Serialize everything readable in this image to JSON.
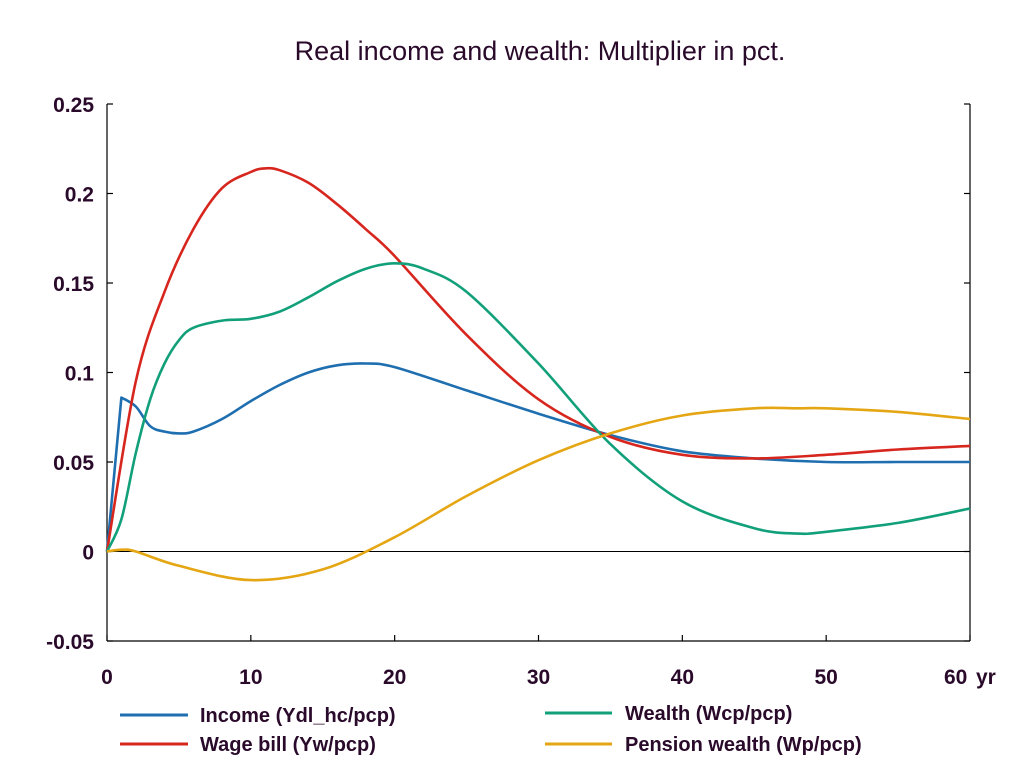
{
  "chart_data": {
    "type": "line",
    "title": "Real income and wealth: Multiplier in pct.",
    "xlabel": "",
    "ylabel": "",
    "x_unit_label": "yr",
    "xlim": [
      0,
      60
    ],
    "ylim": [
      -0.05,
      0.25
    ],
    "x_ticks": [
      {
        "value": 0,
        "label": "0"
      },
      {
        "value": 10,
        "label": "10"
      },
      {
        "value": 20,
        "label": "20"
      },
      {
        "value": 30,
        "label": "30"
      },
      {
        "value": 40,
        "label": "40"
      },
      {
        "value": 50,
        "label": "50"
      },
      {
        "value": 60,
        "label": "60"
      }
    ],
    "y_ticks": [
      {
        "value": 0.25,
        "label": "0.25"
      },
      {
        "value": 0.2,
        "label": "0.2"
      },
      {
        "value": 0.15,
        "label": "0.15"
      },
      {
        "value": 0.1,
        "label": "0.1"
      },
      {
        "value": 0.05,
        "label": "0.05"
      },
      {
        "value": 0,
        "label": "0"
      },
      {
        "value": -0.05,
        "label": "-0.05"
      }
    ],
    "zero_line": true,
    "grid": false,
    "legend_position": "bottom",
    "series": [
      {
        "name": "Income (Ydl_hc/pcp)",
        "color": "#1f6fb0",
        "x": [
          0,
          1,
          2,
          3,
          4,
          5,
          6,
          8,
          10,
          12,
          14,
          16,
          18,
          20,
          25,
          30,
          35,
          40,
          45,
          50,
          55,
          60
        ],
        "y": [
          0,
          0.086,
          0.081,
          0.07,
          0.067,
          0.066,
          0.067,
          0.074,
          0.084,
          0.093,
          0.1,
          0.104,
          0.105,
          0.103,
          0.09,
          0.077,
          0.065,
          0.056,
          0.052,
          0.05,
          0.05,
          0.05
        ]
      },
      {
        "name": "Wage bill (Yw/pcp)",
        "color": "#d7261e",
        "x": [
          0,
          2,
          4,
          6,
          8,
          10,
          11,
          12,
          14,
          16,
          18,
          20,
          25,
          30,
          35,
          40,
          45,
          50,
          55,
          60
        ],
        "y": [
          0,
          0.095,
          0.145,
          0.18,
          0.203,
          0.212,
          0.214,
          0.213,
          0.206,
          0.194,
          0.18,
          0.165,
          0.121,
          0.085,
          0.064,
          0.054,
          0.052,
          0.054,
          0.057,
          0.059
        ]
      },
      {
        "name": "Wealth (Wcp/pcp)",
        "color": "#12a07a",
        "x": [
          0,
          1,
          2,
          3,
          4,
          5,
          6,
          8,
          10,
          12,
          14,
          16,
          18,
          20,
          22,
          25,
          30,
          35,
          40,
          45,
          48,
          50,
          55,
          60
        ],
        "y": [
          0,
          0.018,
          0.055,
          0.085,
          0.105,
          0.118,
          0.125,
          0.129,
          0.13,
          0.134,
          0.142,
          0.151,
          0.158,
          0.161,
          0.158,
          0.145,
          0.105,
          0.06,
          0.028,
          0.013,
          0.01,
          0.011,
          0.016,
          0.024
        ]
      },
      {
        "name": "Pension wealth (Wp/pcp)",
        "color": "#e5a614",
        "x": [
          0,
          1,
          2,
          5,
          10,
          15,
          20,
          25,
          30,
          35,
          40,
          45,
          48,
          50,
          55,
          60
        ],
        "y": [
          0,
          0.001,
          0,
          -0.008,
          -0.016,
          -0.01,
          0.008,
          0.031,
          0.051,
          0.066,
          0.076,
          0.08,
          0.08,
          0.08,
          0.078,
          0.074
        ]
      }
    ]
  }
}
